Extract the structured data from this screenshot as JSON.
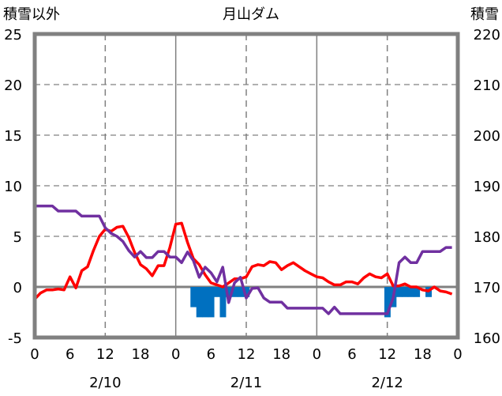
{
  "chart_data": {
    "type": "line",
    "title": "月山ダム",
    "ylabel_left": "積雪以外",
    "ylabel_right": "積雪",
    "ylim_left": [
      -5,
      25
    ],
    "ylim_right": [
      160,
      220
    ],
    "yticks_left": [
      "-5",
      "0",
      "5",
      "10",
      "15",
      "20",
      "25"
    ],
    "yticks_right": [
      "160",
      "170",
      "180",
      "190",
      "200",
      "210",
      "220"
    ],
    "xlim_hours": [
      0,
      72
    ],
    "xticks": [
      "0",
      "6",
      "12",
      "18",
      "0",
      "6",
      "12",
      "18",
      "0",
      "6",
      "12",
      "18",
      "0"
    ],
    "day_labels": [
      "2/10",
      "2/11",
      "2/12"
    ],
    "grid": true,
    "colors": {
      "red": "#ff0000",
      "purple": "#7030a0",
      "blue": "#0070c0",
      "axis": "#808080"
    },
    "series": [
      {
        "name": "red-line (left axis)",
        "axis": "left",
        "type": "line",
        "color": "#ff0000",
        "start_hour": 0,
        "values": [
          -1.2,
          -0.6,
          -0.3,
          -0.3,
          -0.2,
          -0.3,
          1.0,
          -0.1,
          1.6,
          2.0,
          3.6,
          5.0,
          5.7,
          5.5,
          5.9,
          6.0,
          4.9,
          3.4,
          2.2,
          1.8,
          1.1,
          2.1,
          2.1,
          3.9,
          6.2,
          6.3,
          4.4,
          2.8,
          2.2,
          1.2,
          0.4,
          0.2,
          0.0,
          0.4,
          0.8,
          0.8,
          1.0,
          2.0,
          2.2,
          2.1,
          2.5,
          2.4,
          1.7,
          2.1,
          2.4,
          2.0,
          1.6,
          1.3,
          1.0,
          0.9,
          0.5,
          0.2,
          0.2,
          0.5,
          0.5,
          0.3,
          0.9,
          1.3,
          1.0,
          0.9,
          1.3,
          0.1,
          0.1,
          0.3,
          0.0,
          0.0,
          -0.3,
          -0.4,
          0.0,
          -0.4,
          -0.5,
          -0.7
        ]
      },
      {
        "name": "purple-line (right axis)",
        "axis": "right",
        "type": "line",
        "color": "#7030a0",
        "start_hour": 0,
        "values": [
          186,
          186,
          186,
          186,
          185,
          185,
          185,
          185,
          184,
          184,
          184,
          184,
          181.7,
          180.6,
          180,
          179,
          177.2,
          175.9,
          177,
          175.8,
          175.8,
          177,
          177,
          175.9,
          175.9,
          174.8,
          176.9,
          175.2,
          171.9,
          173.9,
          172.8,
          171,
          173.9,
          166.9,
          170.8,
          171.9,
          167.8,
          169.7,
          169.8,
          167.8,
          167,
          167,
          167,
          165.8,
          165.8,
          165.8,
          165.8,
          165.8,
          165.8,
          165.8,
          164.7,
          166,
          164.7,
          164.7,
          164.7,
          164.7,
          164.7,
          164.7,
          164.7,
          164.7,
          164.7,
          167.8,
          174.8,
          175.9,
          174.8,
          174.8,
          177,
          177,
          177,
          177,
          177.8,
          177.8
        ]
      },
      {
        "name": "blue-bars (left axis)",
        "axis": "left",
        "type": "bar",
        "color": "#0070c0",
        "hours": [
          27,
          28,
          29,
          30,
          31,
          32,
          33,
          34,
          35,
          36,
          60,
          61,
          62,
          63,
          64,
          65,
          67
        ],
        "values": [
          -2,
          -3,
          -3,
          -3,
          -1,
          -3,
          -1,
          -1,
          -1,
          -1,
          -3,
          -2,
          -1,
          -1,
          -1,
          -1,
          -1
        ]
      }
    ]
  }
}
